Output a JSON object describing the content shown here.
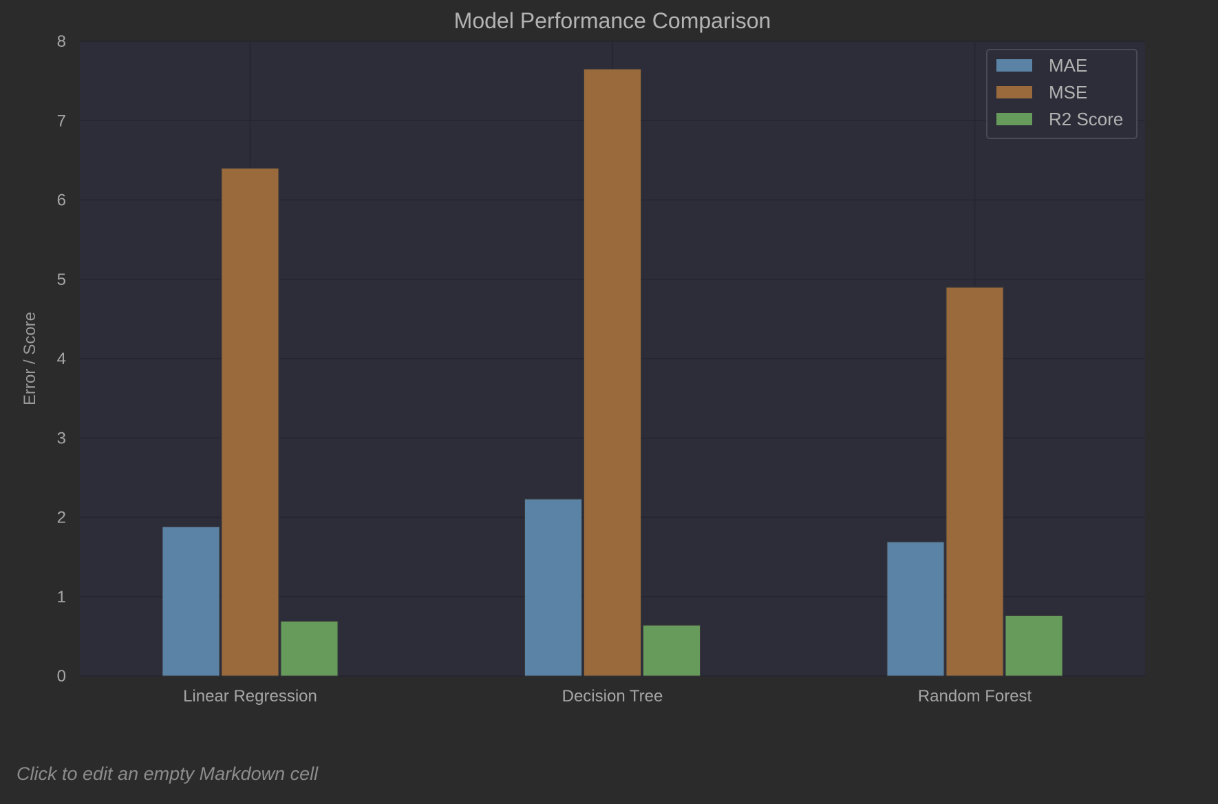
{
  "chart_data": {
    "type": "bar",
    "title": "Model Performance Comparison",
    "xlabel": "",
    "ylabel": "Error / Score",
    "categories": [
      "Linear Regression",
      "Decision Tree",
      "Random Forest"
    ],
    "series": [
      {
        "name": "MAE",
        "values": [
          1.88,
          2.23,
          1.69
        ],
        "color": "#5b83a6"
      },
      {
        "name": "MSE",
        "values": [
          6.4,
          7.65,
          4.9
        ],
        "color": "#9a6a3c"
      },
      {
        "name": "R2 Score",
        "values": [
          0.69,
          0.64,
          0.76
        ],
        "color": "#669b5c"
      }
    ],
    "ylim": [
      0,
      8
    ],
    "yticks": [
      "0",
      "1",
      "2",
      "3",
      "4",
      "5",
      "6",
      "7",
      "8"
    ],
    "grid": true,
    "legend_position": "top-right",
    "colors": {
      "background": "#2b2b2b",
      "plot_background": "#2d2d3a",
      "grid": "#25252f"
    }
  },
  "markdown_cell": {
    "placeholder": "Click to edit an empty Markdown cell"
  }
}
